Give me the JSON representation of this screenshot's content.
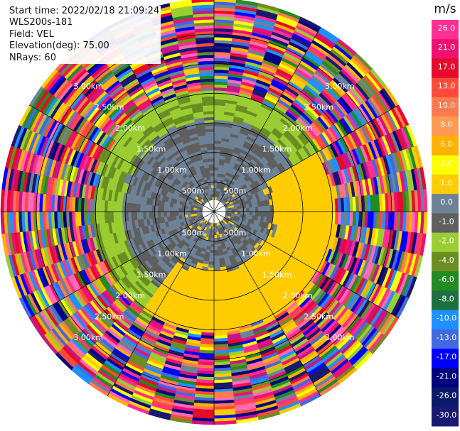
{
  "info": {
    "start_time": "Start time: 2022/02/18 21:09:24",
    "instrument": "WLS200s-181",
    "field": "Field: VEL",
    "elevation": "Elevation(deg): 75.00",
    "nrays": "NRays: 60"
  },
  "chart_data": {
    "type": "heatmap",
    "projection": "polar-ppi",
    "field": "VEL",
    "elevation_deg": 75.0,
    "n_rays": 60,
    "range_rings": [
      "500m",
      "1.00km",
      "1.50km",
      "2.00km",
      "2.50km",
      "3.00km"
    ],
    "range_rings_m": [
      500,
      1000,
      1500,
      2000,
      2500,
      3000
    ],
    "max_range_m": 3600,
    "colorbar": {
      "unit": "m/s",
      "ticks": [
        "26.0",
        "21.0",
        "17.0",
        "13.0",
        "10.0",
        "8.0",
        "6.0",
        "2.0",
        "1.0",
        "0.0",
        "-1.0",
        "-2.0",
        "-4.0",
        "-6.0",
        "-8.0",
        "-10.0",
        "-13.0",
        "-17.0",
        "-21.0",
        "-26.0",
        "-30.0"
      ],
      "colors": [
        "#ff2f92",
        "#f01070",
        "#e60a2b",
        "#ff4a3a",
        "#ff7a50",
        "#ff9a55",
        "#ffb000",
        "#ffff00",
        "#ffcc00",
        "#6e8297",
        "#5f5f5f",
        "#9acd32",
        "#6b8e23",
        "#228b22",
        "#1e7040",
        "#1e90ff",
        "#4169e1",
        "#0000ff",
        "#000080",
        "#0a1a6b",
        "#191970"
      ]
    },
    "regions": {
      "near_zero_m": 3,
      "gray_to_m": 1550,
      "green_to_m": 2050,
      "noise_from_m": 2050,
      "southeast_yellow_to_m": 1900
    }
  }
}
